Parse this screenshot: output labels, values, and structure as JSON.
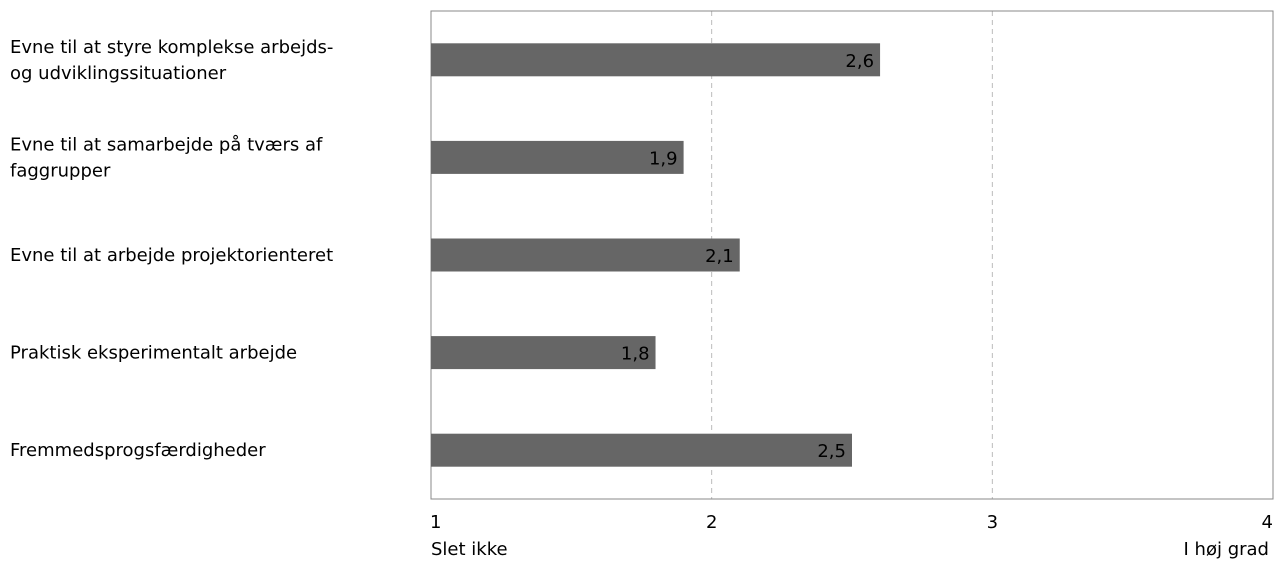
{
  "chart_data": {
    "type": "bar",
    "orientation": "horizontal",
    "categories": [
      [
        "Evne til at styre komplekse arbejds-",
        "og udviklingssituationer"
      ],
      [
        "Evne til at samarbejde på tværs af",
        "faggrupper"
      ],
      [
        "Evne til at arbejde projektorienteret"
      ],
      [
        "Praktisk eksperimentalt arbejde"
      ],
      [
        "Fremmedsprogsfærdigheder"
      ]
    ],
    "values": [
      2.6,
      1.9,
      2.1,
      1.8,
      2.5
    ],
    "data_labels": [
      "2,6",
      "1,9",
      "2,1",
      "1,8",
      "2,5"
    ],
    "xlim": [
      1,
      4
    ],
    "xticks": [
      1,
      2,
      3,
      4
    ],
    "xtick_labels": [
      "1",
      "2",
      "3",
      "4"
    ],
    "x_end_labels": {
      "left": "Slet ikke",
      "right": "I høj grad"
    },
    "grid": "vertical dashed",
    "legend": "none",
    "bar_color": "#666666",
    "frame_color": "#888888",
    "grid_color": "#bbbbbb"
  }
}
